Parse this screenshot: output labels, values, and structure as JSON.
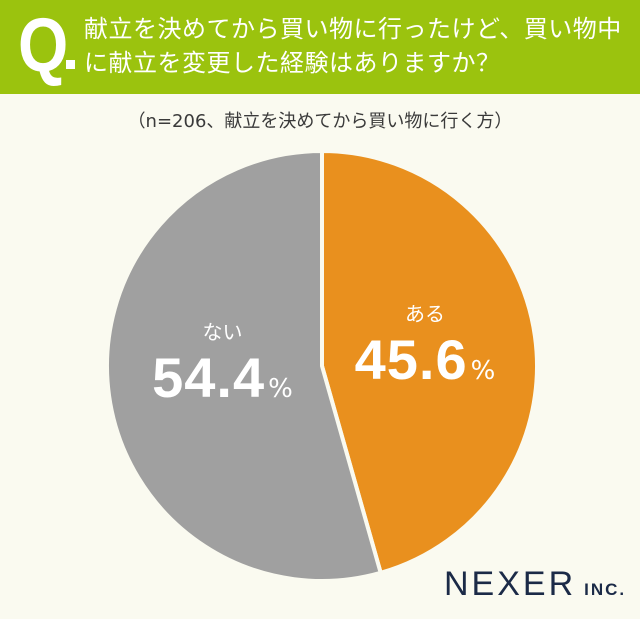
{
  "header": {
    "q_mark": "Q",
    "title": "献立を決めてから買い物に行ったけど、買い物中に献立を変更した経験はありますか？"
  },
  "subtitle": "（n=206、献立を決めてから買い物に行く方）",
  "colors": {
    "header_bg": "#9bc30e",
    "background": "#fafaf0",
    "yes": "#e9901e",
    "no": "#a0a0a0"
  },
  "chart_data": {
    "type": "pie",
    "title": "献立を決めてから買い物に行ったけど、買い物中に献立を変更した経験はありますか？",
    "subtitle": "（n=206、献立を決めてから買い物に行く方）",
    "categories": [
      "ある",
      "ない"
    ],
    "values": [
      45.6,
      54.4
    ],
    "unit": "%",
    "colors": [
      "#e9901e",
      "#a0a0a0"
    ],
    "start_angle": "12 o'clock, clockwise",
    "n": 206
  },
  "labels": {
    "yes": {
      "name": "ある",
      "value": "45.6",
      "unit": "%"
    },
    "no": {
      "name": "ない",
      "value": "54.4",
      "unit": "%"
    }
  },
  "logo": {
    "name": "NEXER",
    "suffix": "INC."
  }
}
